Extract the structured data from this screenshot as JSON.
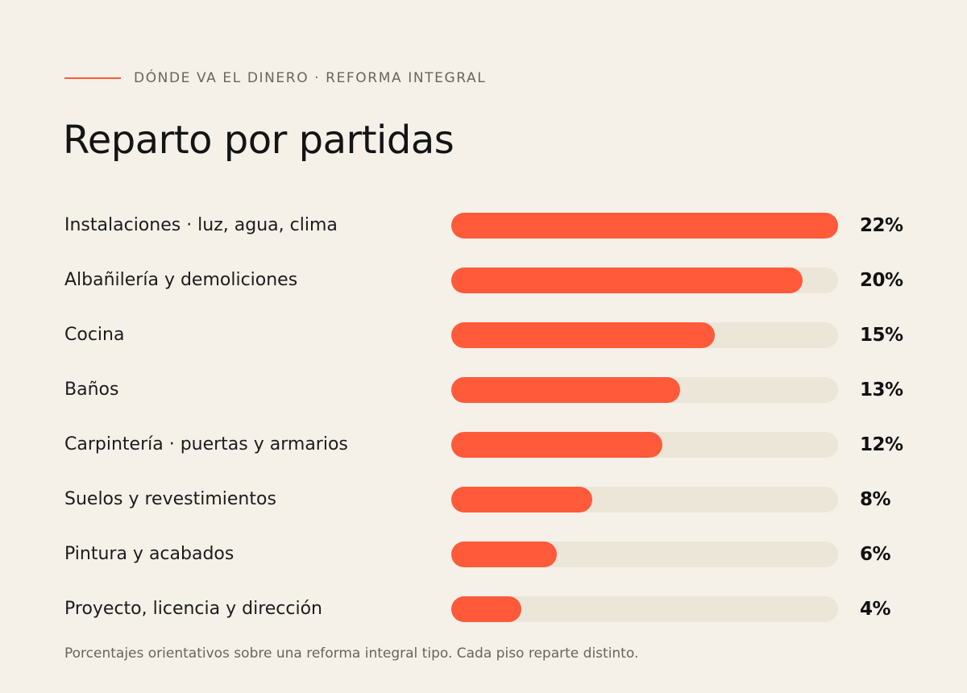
{
  "header": {
    "eyebrow": "DÓNDE VA EL DINERO · REFORMA INTEGRAL",
    "title": "Reparto por partidas"
  },
  "footnote": "Porcentajes orientativos sobre una reforma integral tipo. Cada piso reparte distinto.",
  "colors": {
    "accent": "#ff5a3a",
    "track": "#ece6d9",
    "background": "#f5f0e8"
  },
  "chart_data": {
    "type": "bar",
    "orientation": "horizontal",
    "title": "Reparto por partidas",
    "categories": [
      "Instalaciones · luz, agua, clima",
      "Albañilería y demoliciones",
      "Cocina",
      "Baños",
      "Carpintería · puertas y armarios",
      "Suelos y revestimientos",
      "Pintura y acabados",
      "Proyecto, licencia y dirección"
    ],
    "values": [
      22,
      20,
      15,
      13,
      12,
      8,
      6,
      4
    ],
    "value_labels": [
      "22%",
      "20%",
      "15%",
      "13%",
      "12%",
      "8%",
      "6%",
      "4%"
    ],
    "unit": "%",
    "xlim": [
      0,
      22
    ],
    "grid": false,
    "legend": "none"
  }
}
